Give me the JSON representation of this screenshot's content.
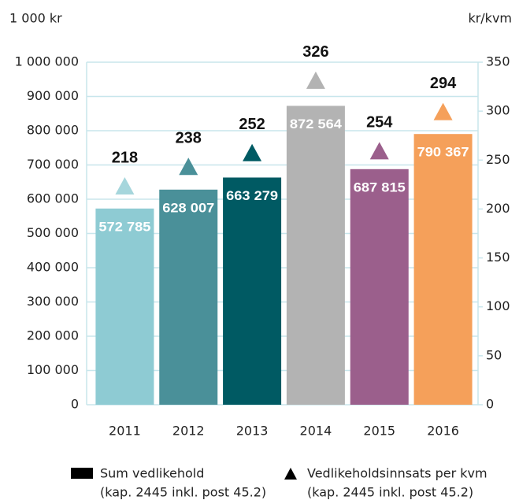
{
  "chart_data": {
    "type": "bar",
    "ylabel": "1 000 kr",
    "y2label": "kr/kvm",
    "categories": [
      "2011",
      "2012",
      "2013",
      "2014",
      "2015",
      "2016"
    ],
    "series": [
      {
        "name": "Sum vedlikehold",
        "name_note": "(kap. 2445 inkl. post 45.2)",
        "type": "bar",
        "colors": [
          "#8ecbd3",
          "#4a9099",
          "#005a63",
          "#b3b3b3",
          "#9b5f8c",
          "#f5a05a"
        ],
        "legend_color": "#000000",
        "values": [
          572785,
          628007,
          663279,
          872564,
          687815,
          790367
        ],
        "value_labels": [
          "572 785",
          "628 007",
          "663 279",
          "872 564",
          "687 815",
          "790 367"
        ]
      },
      {
        "name": "Vedlikeholdsinnsats per kvm",
        "name_note": "(kap. 2445 inkl. post 45.2)",
        "type": "scatter",
        "axis": "y2",
        "colors": [
          "#a6d6dc",
          "#4a9099",
          "#005a63",
          "#b3b3b3",
          "#9b5f8c",
          "#f5a05a"
        ],
        "legend_color": "#000000",
        "values": [
          218,
          238,
          252,
          326,
          254,
          294
        ]
      }
    ],
    "ylim": [
      0,
      1000000
    ],
    "yticks": [
      0,
      {
        "value": 100000,
        "label": "100 000"
      },
      {
        "value": 200000,
        "label": "200 000"
      },
      {
        "value": 300000,
        "label": "300 000"
      },
      {
        "value": 400000,
        "label": "400 000"
      },
      {
        "value": 500000,
        "label": "500 000"
      },
      {
        "value": 600000,
        "label": "600 000"
      },
      {
        "value": 700000,
        "label": "700 000"
      },
      {
        "value": 800000,
        "label": "800 000"
      },
      {
        "value": 900000,
        "label": "900 000"
      },
      {
        "value": 1000000,
        "label": "1 000 000"
      }
    ],
    "y2lim": [
      0,
      350
    ],
    "y2ticks": [
      0,
      50,
      100,
      150,
      200,
      250,
      300,
      350
    ],
    "grid": true,
    "grid_color": "#c8e6ec",
    "legend": "bottom"
  }
}
